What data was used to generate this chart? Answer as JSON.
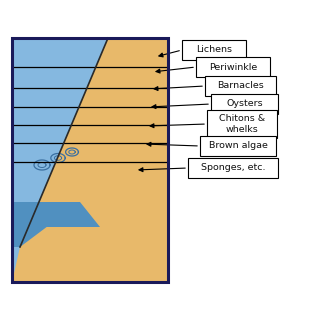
{
  "bg_color": "#ffffff",
  "box_bg": "#ffffff",
  "ocean_light": "#85b8e0",
  "ocean_dark": "#5090c0",
  "sand_color": "#e8b96a",
  "border_color": "#1a1a5a",
  "line_color": "#000000",
  "labels": [
    "Lichens",
    "Periwinkle",
    "Barnacles",
    "Oysters",
    "Chitons &\nwhelks",
    "Brown algae",
    "Sponges, etc."
  ],
  "figsize": [
    3.2,
    3.2
  ],
  "dpi": 100
}
